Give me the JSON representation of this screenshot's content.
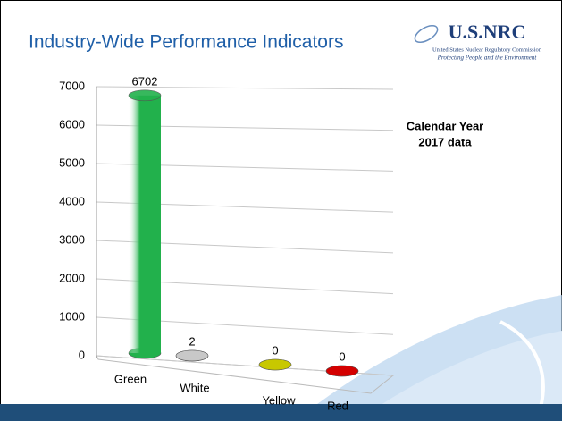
{
  "logo": {
    "name": "U.S.NRC",
    "subtitle": "United States Nuclear Regulatory Commission",
    "tagline": "Protecting People and the Environment"
  },
  "chart_data": {
    "type": "bar",
    "title": "Industry-Wide Performance Indicators",
    "annotation": [
      "Calendar Year",
      "2017 data"
    ],
    "categories": [
      "Green",
      "White",
      "Yellow",
      "Red"
    ],
    "values": [
      6702,
      2,
      0,
      0
    ],
    "colors": [
      "#22b14c",
      "#c8c8c8",
      "#c8c800",
      "#d40000"
    ],
    "ylim": [
      0,
      7000
    ],
    "yticks": [
      0,
      1000,
      2000,
      3000,
      4000,
      5000,
      6000,
      7000
    ],
    "grid": true
  }
}
